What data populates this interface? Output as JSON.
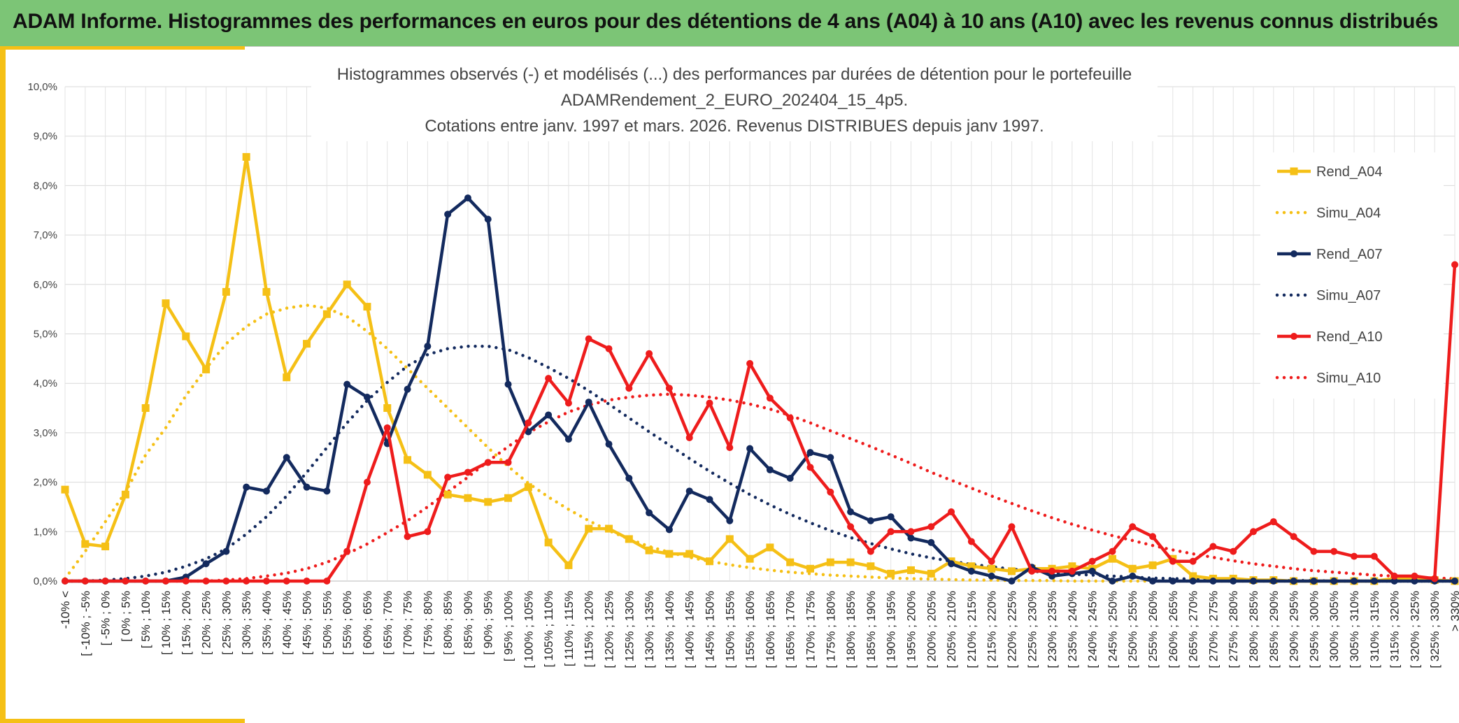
{
  "page": {
    "banner_title": "ADAM Informe. Histogrammes des performances en euros pour des détentions de 4 ans (A04) à 10 ans (A10) avec les revenus connus distribués"
  },
  "colors": {
    "banner": "#7cc576",
    "accent": "#f5c016",
    "A04": "#f5c016",
    "A07": "#132a5e",
    "A10": "#ee1c1c"
  },
  "chart_data": {
    "type": "line",
    "title": [
      "Histogrammes observés (-) et modélisés (...) des performances par durées de détention pour le portefeuille",
      "ADAMRendement_2_EURO_202404_15_4p5.",
      "Cotations entre janv. 1997 et mars. 2026. Revenus DISTRIBUES depuis janv 1997."
    ],
    "ylim": [
      0,
      10
    ],
    "yticks": [
      "0,0%",
      "1,0%",
      "2,0%",
      "3,0%",
      "4,0%",
      "5,0%",
      "6,0%",
      "7,0%",
      "8,0%",
      "9,0%",
      "10,0%"
    ],
    "grid": true,
    "legend_position": "right",
    "categories": [
      "-10% <",
      "[ -10% ; -5%",
      "[ -5% ; 0%",
      "[ 0% ; 5%",
      "[ 5% ; 10%",
      "[ 10% ; 15%",
      "[ 15% ; 20%",
      "[ 20% ; 25%",
      "[ 25% ; 30%",
      "[ 30% ; 35%",
      "[ 35% ; 40%",
      "[ 40% ; 45%",
      "[ 45% ; 50%",
      "[ 50% ; 55%",
      "[ 55% ; 60%",
      "[ 60% ; 65%",
      "[ 65% ; 70%",
      "[ 70% ; 75%",
      "[ 75% ; 80%",
      "[ 80% ; 85%",
      "[ 85% ; 90%",
      "[ 90% ; 95%",
      "[ 95% ; 100%",
      "[ 100% ; 105%",
      "[ 105% ; 110%",
      "[ 110% ; 115%",
      "[ 115% ; 120%",
      "[ 120% ; 125%",
      "[ 125% ; 130%",
      "[ 130% ; 135%",
      "[ 135% ; 140%",
      "[ 140% ; 145%",
      "[ 145% ; 150%",
      "[ 150% ; 155%",
      "[ 155% ; 160%",
      "[ 160% ; 165%",
      "[ 165% ; 170%",
      "[ 170% ; 175%",
      "[ 175% ; 180%",
      "[ 180% ; 185%",
      "[ 185% ; 190%",
      "[ 190% ; 195%",
      "[ 195% ; 200%",
      "[ 200% ; 205%",
      "[ 205% ; 210%",
      "[ 210% ; 215%",
      "[ 215% ; 220%",
      "[ 220% ; 225%",
      "[ 225% ; 230%",
      "[ 230% ; 235%",
      "[ 235% ; 240%",
      "[ 240% ; 245%",
      "[ 245% ; 250%",
      "[ 250% ; 255%",
      "[ 255% ; 260%",
      "[ 260% ; 265%",
      "[ 265% ; 270%",
      "[ 270% ; 275%",
      "[ 275% ; 280%",
      "[ 280% ; 285%",
      "[ 285% ; 290%",
      "[ 290% ; 295%",
      "[ 295% ; 300%",
      "[ 300% ; 305%",
      "[ 305% ; 310%",
      "[ 310% ; 315%",
      "[ 315% ; 320%",
      "[ 320% ; 325%",
      "[ 325% ; 330%",
      "> 330%"
    ],
    "series": [
      {
        "name": "Rend_A04",
        "style": "solid",
        "marker": "square",
        "color": "#f5c016",
        "values": [
          1.85,
          0.75,
          0.7,
          1.75,
          3.5,
          5.62,
          4.95,
          4.28,
          5.85,
          8.58,
          5.85,
          4.12,
          4.8,
          5.4,
          6.0,
          5.55,
          3.5,
          2.45,
          2.15,
          1.75,
          1.68,
          1.6,
          1.68,
          1.9,
          0.78,
          0.32,
          1.06,
          1.06,
          0.85,
          0.62,
          0.55,
          0.55,
          0.4,
          0.85,
          0.45,
          0.68,
          0.38,
          0.25,
          0.38,
          0.38,
          0.3,
          0.15,
          0.22,
          0.15,
          0.4,
          0.3,
          0.25,
          0.2,
          0.25,
          0.25,
          0.3,
          0.25,
          0.45,
          0.25,
          0.32,
          0.45,
          0.1,
          0.05,
          0.05,
          0.02,
          0.02,
          0,
          0,
          0,
          0,
          0,
          0.05,
          0.05,
          0.02,
          0
        ]
      },
      {
        "name": "Simu_A04",
        "style": "dotted",
        "color": "#f5c016",
        "values": [
          0.05,
          0.6,
          1.2,
          1.8,
          2.55,
          3.1,
          3.75,
          4.3,
          4.8,
          5.15,
          5.4,
          5.52,
          5.58,
          5.52,
          5.35,
          5.05,
          4.7,
          4.3,
          3.9,
          3.5,
          3.1,
          2.7,
          2.32,
          1.98,
          1.7,
          1.45,
          1.22,
          1.02,
          0.85,
          0.7,
          0.58,
          0.48,
          0.4,
          0.33,
          0.27,
          0.22,
          0.18,
          0.15,
          0.12,
          0.1,
          0.08,
          0.06,
          0.05,
          0.04,
          0.03,
          0.02,
          0.02,
          0.01,
          0.01,
          0.01,
          0,
          0,
          0,
          0,
          0,
          0,
          0,
          0,
          0,
          0,
          0,
          0,
          0,
          0,
          0,
          0,
          0,
          0,
          0,
          0
        ]
      },
      {
        "name": "Rend_A07",
        "style": "solid",
        "marker": "circle",
        "color": "#132a5e",
        "values": [
          0,
          0,
          0,
          0,
          0,
          0,
          0.08,
          0.35,
          0.6,
          1.9,
          1.82,
          2.5,
          1.9,
          1.82,
          3.98,
          3.72,
          2.78,
          3.88,
          4.75,
          7.42,
          7.75,
          7.32,
          3.98,
          3.02,
          3.36,
          2.87,
          3.62,
          2.77,
          2.08,
          1.38,
          1.04,
          1.82,
          1.65,
          1.22,
          2.68,
          2.25,
          2.08,
          2.6,
          2.5,
          1.4,
          1.22,
          1.3,
          0.87,
          0.78,
          0.35,
          0.2,
          0.1,
          0,
          0.28,
          0.1,
          0.15,
          0.2,
          0,
          0.1,
          0,
          0,
          0,
          0,
          0,
          0,
          0,
          0,
          0,
          0,
          0,
          0,
          0,
          0,
          0,
          0
        ]
      },
      {
        "name": "Simu_A07",
        "style": "dotted",
        "color": "#132a5e",
        "values": [
          0,
          0,
          0.02,
          0.05,
          0.1,
          0.18,
          0.3,
          0.45,
          0.65,
          0.95,
          1.3,
          1.72,
          2.2,
          2.7,
          3.2,
          3.65,
          4.02,
          4.35,
          4.58,
          4.7,
          4.75,
          4.75,
          4.68,
          4.52,
          4.32,
          4.1,
          3.85,
          3.58,
          3.3,
          3.02,
          2.75,
          2.48,
          2.22,
          1.98,
          1.75,
          1.54,
          1.35,
          1.18,
          1.02,
          0.88,
          0.76,
          0.65,
          0.55,
          0.47,
          0.4,
          0.34,
          0.29,
          0.24,
          0.2,
          0.17,
          0.14,
          0.12,
          0.1,
          0.08,
          0.06,
          0.05,
          0.04,
          0.03,
          0.02,
          0.02,
          0.01,
          0.01,
          0.01,
          0,
          0,
          0,
          0,
          0,
          0,
          0
        ]
      },
      {
        "name": "Rend_A10",
        "style": "solid",
        "marker": "circle",
        "color": "#ee1c1c",
        "values": [
          0,
          0,
          0,
          0,
          0,
          0,
          0,
          0,
          0,
          0,
          0,
          0,
          0,
          0,
          0.6,
          2.0,
          3.1,
          0.9,
          1.0,
          2.1,
          2.2,
          2.4,
          2.4,
          3.2,
          4.1,
          3.6,
          4.9,
          4.7,
          3.9,
          4.6,
          3.9,
          2.9,
          3.6,
          2.7,
          4.4,
          3.7,
          3.3,
          2.3,
          1.8,
          1.1,
          0.6,
          1.0,
          1.0,
          1.1,
          1.4,
          0.8,
          0.4,
          1.1,
          0.2,
          0.2,
          0.2,
          0.4,
          0.6,
          1.1,
          0.9,
          0.4,
          0.4,
          0.7,
          0.6,
          1.0,
          1.2,
          0.9,
          0.6,
          0.6,
          0.5,
          0.5,
          0.1,
          0.1,
          0.05,
          6.4
        ]
      },
      {
        "name": "Simu_A10",
        "style": "dotted",
        "color": "#ee1c1c",
        "values": [
          0,
          0,
          0,
          0,
          0,
          0,
          0,
          0,
          0.02,
          0.05,
          0.1,
          0.16,
          0.25,
          0.38,
          0.55,
          0.75,
          0.98,
          1.22,
          1.5,
          1.8,
          2.1,
          2.42,
          2.72,
          3.0,
          3.22,
          3.42,
          3.56,
          3.66,
          3.72,
          3.76,
          3.78,
          3.76,
          3.72,
          3.66,
          3.58,
          3.48,
          3.35,
          3.2,
          3.04,
          2.88,
          2.72,
          2.55,
          2.38,
          2.2,
          2.04,
          1.88,
          1.72,
          1.57,
          1.42,
          1.28,
          1.15,
          1.03,
          0.92,
          0.82,
          0.72,
          0.63,
          0.55,
          0.48,
          0.41,
          0.35,
          0.3,
          0.25,
          0.21,
          0.18,
          0.15,
          0.12,
          0.1,
          0.08,
          0.06,
          0.05
        ]
      }
    ]
  }
}
